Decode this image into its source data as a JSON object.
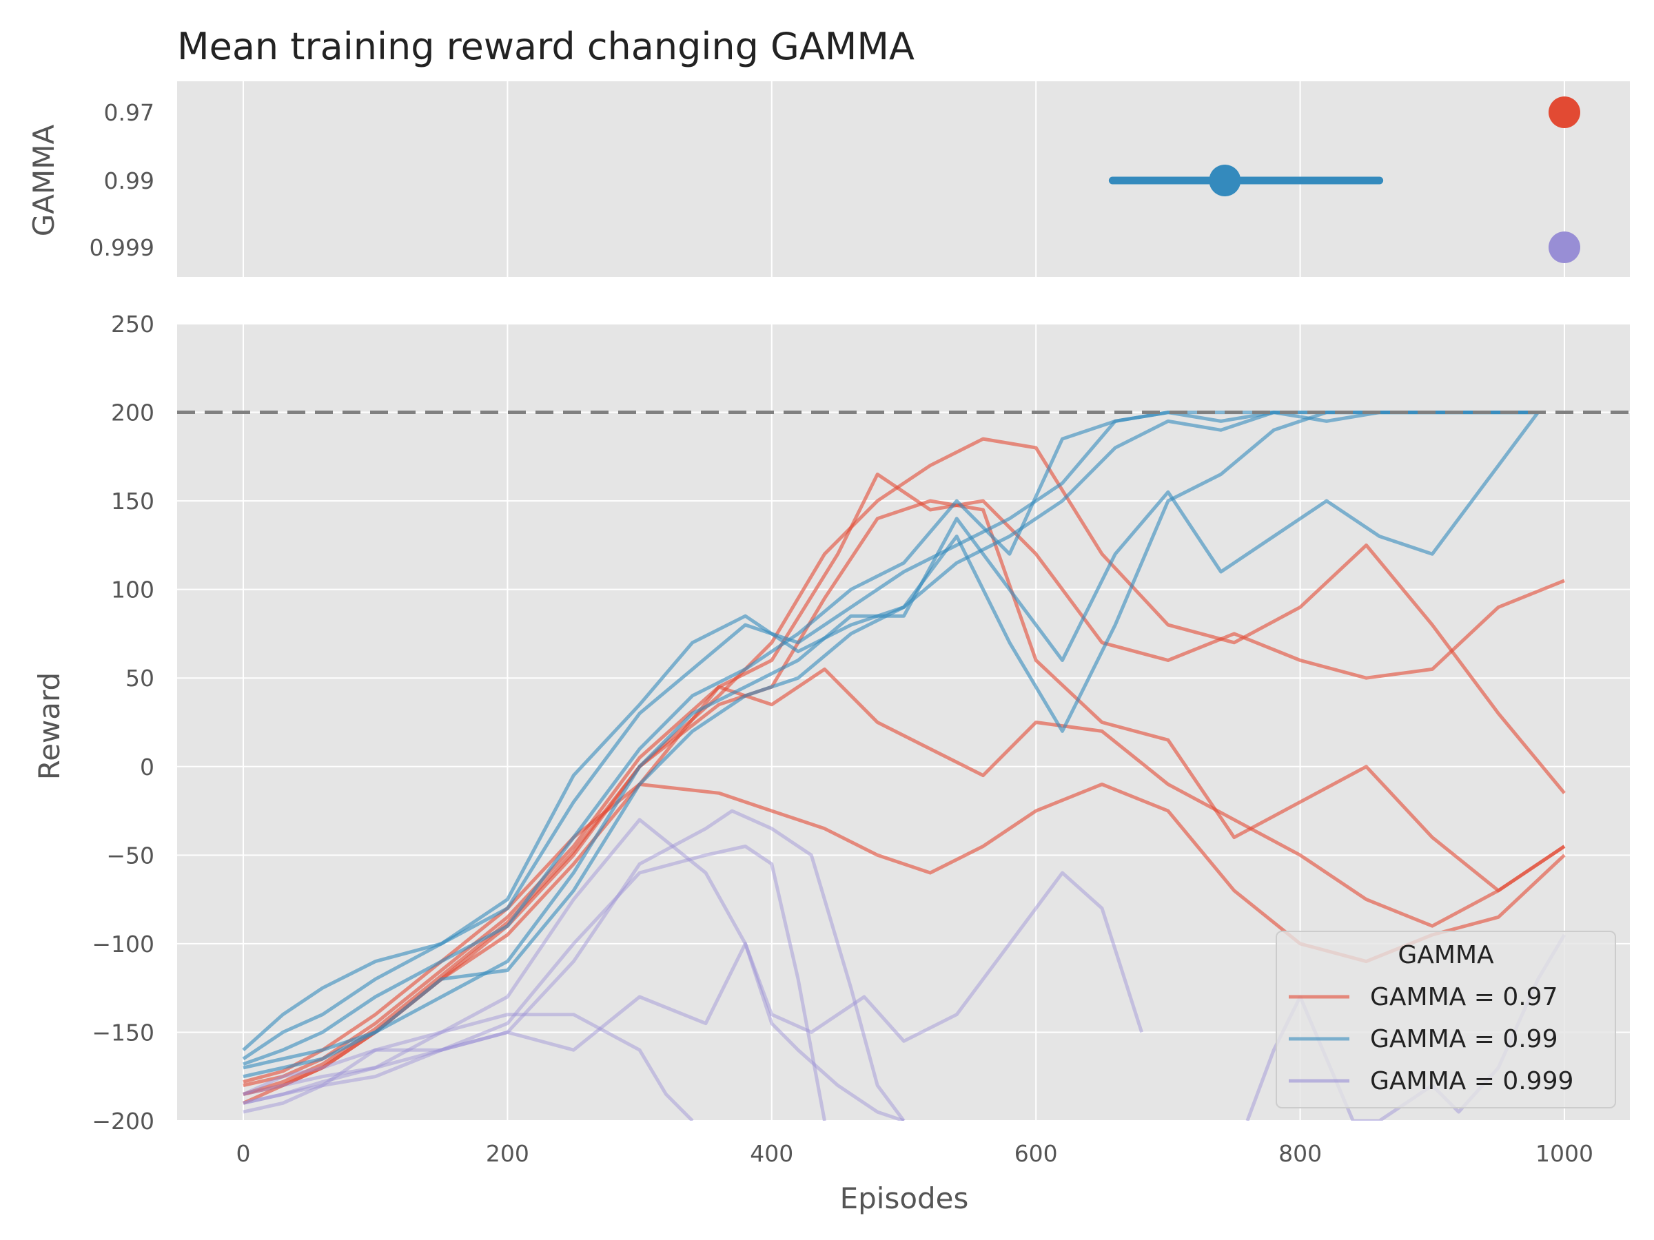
{
  "chart_data": [
    {
      "type": "dot-range",
      "title": "Mean training reward changing GAMMA",
      "ylabel": "GAMMA",
      "categories": [
        "0.97",
        "0.99",
        "0.999"
      ],
      "xlim": [
        -50,
        1050
      ],
      "grid": true,
      "points": [
        {
          "category": "0.97",
          "value": 1000,
          "low": 1000,
          "high": 1000,
          "color": "#E24A33"
        },
        {
          "category": "0.99",
          "value": 743,
          "low": 658,
          "high": 860,
          "color": "#348ABD"
        },
        {
          "category": "0.999",
          "value": 1000,
          "low": 1000,
          "high": 1000,
          "color": "#988ED5"
        }
      ]
    },
    {
      "type": "line",
      "xlabel": "Episodes",
      "ylabel": "Reward",
      "xlim": [
        -50,
        1050
      ],
      "ylim": [
        -200,
        250
      ],
      "x_ticks": [
        0,
        200,
        400,
        600,
        800,
        1000
      ],
      "y_ticks": [
        -200,
        -150,
        -100,
        -50,
        0,
        50,
        100,
        150,
        200,
        250
      ],
      "threshold": 200,
      "grid": true,
      "legend": {
        "title": "GAMMA",
        "position": "lower-right"
      },
      "series": [
        {
          "name": "GAMMA = 0.97",
          "color": "#E24A33",
          "runs": [
            {
              "x": [
                0,
                30,
                60,
                100,
                150,
                200,
                250,
                300,
                360,
                400,
                440,
                480,
                520,
                560,
                600,
                650,
                700,
                750,
                800,
                850,
                900,
                950,
                1000
              ],
              "y": [
                -185,
                -180,
                -170,
                -150,
                -120,
                -95,
                -55,
                -10,
                45,
                35,
                55,
                25,
                10,
                -5,
                25,
                20,
                -10,
                -30,
                -50,
                -75,
                -90,
                -70,
                -45
              ]
            },
            {
              "x": [
                0,
                30,
                60,
                100,
                150,
                200,
                250,
                300,
                360,
                400,
                450,
                480,
                520,
                560,
                600,
                650,
                700,
                750,
                800,
                850,
                900,
                950,
                1000
              ],
              "y": [
                -180,
                -175,
                -165,
                -145,
                -115,
                -85,
                -45,
                5,
                45,
                60,
                120,
                165,
                145,
                150,
                120,
                70,
                60,
                75,
                60,
                50,
                55,
                90,
                105
              ]
            },
            {
              "x": [
                0,
                30,
                60,
                100,
                150,
                200,
                250,
                300,
                360,
                400,
                440,
                480,
                520,
                560,
                600,
                650,
                700,
                750,
                800,
                850,
                900,
                950,
                1000
              ],
              "y": [
                -190,
                -180,
                -170,
                -150,
                -120,
                -90,
                -50,
                0,
                40,
                70,
                120,
                150,
                170,
                185,
                180,
                120,
                80,
                70,
                90,
                125,
                80,
                30,
                -15
              ]
            },
            {
              "x": [
                0,
                30,
                60,
                100,
                150,
                200,
                250,
                300,
                360,
                400,
                440,
                480,
                520,
                560,
                600,
                650,
                700,
                750,
                800,
                850,
                900,
                950,
                1000
              ],
              "y": [
                -178,
                -172,
                -160,
                -140,
                -110,
                -80,
                -40,
                -10,
                -15,
                -25,
                -35,
                -50,
                -60,
                -45,
                -25,
                -10,
                -25,
                -70,
                -100,
                -110,
                -95,
                -85,
                -50
              ]
            },
            {
              "x": [
                0,
                30,
                60,
                100,
                150,
                200,
                250,
                300,
                360,
                400,
                440,
                480,
                520,
                560,
                600,
                650,
                700,
                750,
                800,
                850,
                900,
                950,
                1000
              ],
              "y": [
                -185,
                -178,
                -168,
                -148,
                -118,
                -88,
                -48,
                0,
                35,
                45,
                95,
                140,
                150,
                145,
                60,
                25,
                15,
                -40,
                -20,
                0,
                -40,
                -70,
                -45
              ]
            }
          ]
        },
        {
          "name": "GAMMA = 0.99",
          "color": "#348ABD",
          "runs": [
            {
              "x": [
                0,
                30,
                60,
                100,
                150,
                200,
                250,
                300,
                340,
                380,
                420,
                460,
                500,
                540,
                580,
                620,
                660,
                700,
                740,
                780,
                820,
                860,
                900,
                950,
                980
              ],
              "y": [
                -160,
                -140,
                -125,
                -110,
                -100,
                -80,
                -20,
                30,
                55,
                80,
                70,
                90,
                110,
                125,
                140,
                160,
                195,
                200,
                195,
                200,
                195,
                200,
                200,
                200,
                200
              ]
            },
            {
              "x": [
                0,
                30,
                60,
                100,
                150,
                200,
                250,
                300,
                340,
                380,
                420,
                460,
                500,
                540,
                580,
                620,
                660,
                700,
                740,
                780,
                820,
                860,
                900,
                950,
                980
              ],
              "y": [
                -165,
                -150,
                -140,
                -120,
                -100,
                -75,
                -5,
                35,
                70,
                85,
                65,
                80,
                90,
                115,
                130,
                150,
                180,
                195,
                190,
                200,
                200,
                200,
                200,
                200,
                200
              ]
            },
            {
              "x": [
                0,
                30,
                60,
                100,
                150,
                200,
                250,
                300,
                340,
                380,
                420,
                460,
                500,
                540,
                580,
                620,
                660,
                700,
                740,
                780,
                820,
                860,
                900,
                950,
                980
              ],
              "y": [
                -170,
                -165,
                -160,
                -150,
                -130,
                -110,
                -60,
                0,
                30,
                45,
                60,
                85,
                85,
                140,
                100,
                60,
                120,
                155,
                110,
                130,
                150,
                130,
                120,
                170,
                200
              ]
            },
            {
              "x": [
                0,
                30,
                60,
                100,
                150,
                200,
                250,
                300,
                340,
                380,
                420,
                460,
                500,
                540,
                580,
                620,
                660,
                700,
                740,
                780,
                820,
                860,
                900,
                950,
                980
              ],
              "y": [
                -175,
                -170,
                -165,
                -150,
                -120,
                -115,
                -70,
                -10,
                20,
                40,
                50,
                75,
                90,
                130,
                70,
                20,
                80,
                150,
                165,
                190,
                200,
                200,
                200,
                200,
                200
              ]
            },
            {
              "x": [
                0,
                30,
                60,
                100,
                150,
                200,
                250,
                300,
                340,
                380,
                420,
                460,
                500,
                540,
                580,
                620,
                660,
                700,
                740,
                780,
                820,
                860,
                900,
                950,
                980
              ],
              "y": [
                -168,
                -160,
                -150,
                -130,
                -110,
                -90,
                -40,
                10,
                40,
                55,
                75,
                100,
                115,
                150,
                120,
                185,
                195,
                200,
                200,
                200,
                200,
                200,
                200,
                200,
                200
              ]
            }
          ]
        },
        {
          "name": "GAMMA = 0.999",
          "color": "#988ED5",
          "runs": [
            {
              "x": [
                0,
                30,
                60,
                100,
                150,
                200,
                250,
                300,
                350,
                380,
                400,
                420,
                450,
                480,
                500
              ],
              "y": [
                -185,
                -175,
                -170,
                -160,
                -150,
                -130,
                -75,
                -30,
                -60,
                -100,
                -145,
                -160,
                -180,
                -195,
                -200
              ]
            },
            {
              "x": [
                0,
                30,
                60,
                100,
                150,
                200,
                250,
                300,
                350,
                370,
                400,
                430,
                460,
                480,
                500
              ],
              "y": [
                -190,
                -185,
                -180,
                -175,
                -160,
                -150,
                -110,
                -55,
                -35,
                -25,
                -35,
                -50,
                -125,
                -180,
                -200
              ]
            },
            {
              "x": [
                0,
                30,
                60,
                100,
                150,
                200,
                250,
                300,
                350,
                380,
                400,
                430,
                470,
                500,
                540,
                580,
                620,
                650,
                680
              ],
              "y": [
                -195,
                -190,
                -180,
                -160,
                -160,
                -150,
                -160,
                -130,
                -145,
                -100,
                -140,
                -150,
                -130,
                -155,
                -140,
                -100,
                -60,
                -80,
                -150
              ]
            },
            {
              "x": [
                0,
                30,
                60,
                100,
                150,
                200,
                250,
                300,
                320,
                340
              ],
              "y": [
                -190,
                -185,
                -178,
                -170,
                -150,
                -140,
                -140,
                -160,
                -185,
                -200
              ]
            },
            {
              "x": [
                0,
                30,
                60,
                100,
                150,
                200,
                250,
                300,
                350,
                380,
                400,
                420,
                440
              ],
              "y": [
                -185,
                -180,
                -175,
                -170,
                -160,
                -145,
                -100,
                -60,
                -50,
                -45,
                -55,
                -120,
                -200
              ]
            },
            {
              "x": [
                760,
                780,
                800,
                820,
                840,
                860,
                880,
                900,
                920,
                950,
                980,
                1000
              ],
              "y": [
                -200,
                -160,
                -130,
                -165,
                -200,
                -200,
                -190,
                -180,
                -195,
                -170,
                -120,
                -95
              ]
            }
          ]
        }
      ]
    }
  ]
}
